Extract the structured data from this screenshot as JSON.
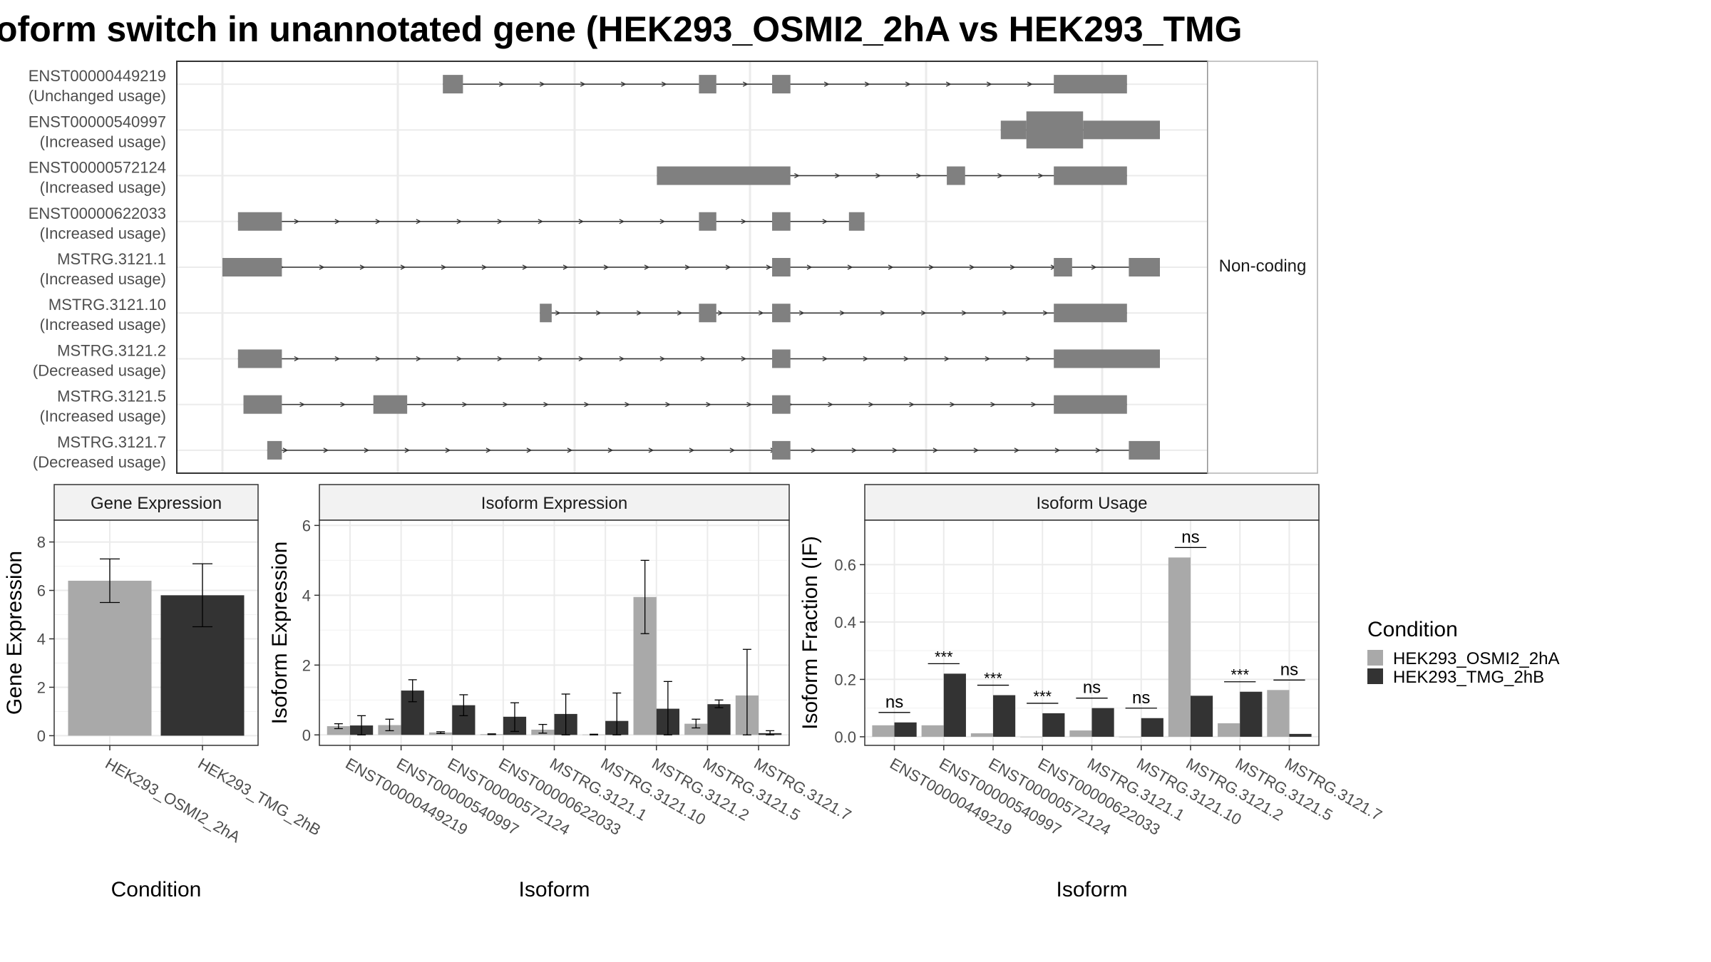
{
  "title": "oform switch in unannotated gene (HEK293_OSMI2_2hA vs HEK293_TMG",
  "colors": {
    "condA": "#a9a9a9",
    "condB": "#333333",
    "exon": "#808080",
    "grid": "#ebebeb",
    "frame": "#333333",
    "strip": "#f2f2f2"
  },
  "legend": {
    "title": "Condition",
    "items": [
      "HEK293_OSMI2_2hA",
      "HEK293_TMG_2hB"
    ]
  },
  "chart_data": [
    {
      "type": "isoform-structure",
      "facet_label": "Non-coding",
      "x_range": [
        0,
        1000
      ],
      "isoforms": [
        {
          "id": "ENST00000449219",
          "usage": "(Unchanged usage)",
          "exons": [
            [
              242,
              264
            ],
            [
              522,
              541
            ],
            [
              602,
              622
            ],
            [
              910,
              990
            ]
          ],
          "span": [
            242,
            990
          ]
        },
        {
          "id": "ENST00000540997",
          "usage": "(Increased usage)",
          "exons": [
            [
              852,
              880,
              "thin"
            ],
            [
              880,
              942,
              "thick"
            ],
            [
              942,
              1026,
              "thin"
            ]
          ],
          "span": [
            852,
            1026
          ]
        },
        {
          "id": "ENST00000572124",
          "usage": "(Increased usage)",
          "exons": [
            [
              476,
              622
            ],
            [
              793,
              813
            ],
            [
              910,
              990
            ]
          ],
          "span": [
            476,
            990
          ]
        },
        {
          "id": "ENST00000622033",
          "usage": "(Increased usage)",
          "exons": [
            [
              18,
              66
            ],
            [
              522,
              541
            ],
            [
              602,
              622
            ],
            [
              686,
              703
            ]
          ],
          "span": [
            18,
            703
          ]
        },
        {
          "id": "MSTRG.3121.1",
          "usage": "(Increased usage)",
          "exons": [
            [
              1,
              66
            ],
            [
              602,
              622
            ],
            [
              910,
              930
            ],
            [
              992,
              1026
            ]
          ],
          "span": [
            1,
            1026
          ]
        },
        {
          "id": "MSTRG.3121.10",
          "usage": "(Increased usage)",
          "exons": [
            [
              348,
              361
            ],
            [
              522,
              541
            ],
            [
              602,
              622
            ],
            [
              910,
              990
            ]
          ],
          "span": [
            348,
            990
          ]
        },
        {
          "id": "MSTRG.3121.2",
          "usage": "(Decreased usage)",
          "exons": [
            [
              18,
              66
            ],
            [
              602,
              622
            ],
            [
              910,
              1026
            ]
          ],
          "span": [
            18,
            1026
          ]
        },
        {
          "id": "MSTRG.3121.5",
          "usage": "(Increased usage)",
          "exons": [
            [
              24,
              66
            ],
            [
              166,
              203
            ],
            [
              602,
              622
            ],
            [
              910,
              990
            ]
          ],
          "span": [
            24,
            990
          ]
        },
        {
          "id": "MSTRG.3121.7",
          "usage": "(Decreased usage)",
          "exons": [
            [
              50,
              66
            ],
            [
              602,
              622
            ],
            [
              992,
              1026
            ]
          ],
          "span": [
            50,
            1026
          ]
        }
      ]
    },
    {
      "type": "bar",
      "title": "Gene Expression",
      "xlabel": "Condition",
      "ylabel": "Gene Expression",
      "ylim": [
        -0.4,
        8.9
      ],
      "yticks": [
        0,
        2,
        4,
        6,
        8
      ],
      "categories": [
        "HEK293_OSMI2_2hA",
        "HEK293_TMG_2hB"
      ],
      "values": [
        6.4,
        5.8
      ],
      "errors": [
        [
          5.5,
          7.3
        ],
        [
          4.5,
          7.1
        ]
      ]
    },
    {
      "type": "bar",
      "title": "Isoform Expression",
      "xlabel": "Isoform",
      "ylabel": "Isoform Expression",
      "ylim": [
        -0.3,
        6.15
      ],
      "yticks": [
        0,
        2,
        4,
        6
      ],
      "categories": [
        "ENST00000449219",
        "ENST00000540997",
        "ENST00000572124",
        "ENST00000622033",
        "MSTRG.3121.1",
        "MSTRG.3121.10",
        "MSTRG.3121.2",
        "MSTRG.3121.5",
        "MSTRG.3121.7"
      ],
      "series": [
        {
          "name": "HEK293_OSMI2_2hA",
          "values": [
            0.25,
            0.28,
            0.07,
            0.02,
            0.15,
            0.01,
            3.95,
            0.32,
            1.13
          ],
          "errors": [
            [
              0.18,
              0.32
            ],
            [
              0.12,
              0.45
            ],
            [
              0.04,
              0.09
            ],
            [
              0.01,
              0.03
            ],
            [
              0.05,
              0.3
            ],
            [
              0,
              0.02
            ],
            [
              2.9,
              5.0
            ],
            [
              0.2,
              0.45
            ],
            [
              0.0,
              2.45
            ]
          ]
        },
        {
          "name": "HEK293_TMG_2hB",
          "values": [
            0.27,
            1.27,
            0.85,
            0.52,
            0.6,
            0.4,
            0.75,
            0.88,
            0.05
          ],
          "errors": [
            [
              0.0,
              0.55
            ],
            [
              0.95,
              1.58
            ],
            [
              0.55,
              1.15
            ],
            [
              0.1,
              0.92
            ],
            [
              0.0,
              1.17
            ],
            [
              0.0,
              1.2
            ],
            [
              0.0,
              1.53
            ],
            [
              0.78,
              1.0
            ],
            [
              0.0,
              0.12
            ]
          ]
        }
      ]
    },
    {
      "type": "bar",
      "title": "Isoform Usage",
      "xlabel": "Isoform",
      "ylabel": "Isoform Fraction (IF)",
      "ylim": [
        -0.03,
        0.755
      ],
      "yticks": [
        0.0,
        0.2,
        0.4,
        0.6
      ],
      "ytick_labels": [
        "0.0",
        "0.2",
        "0.4",
        "0.6"
      ],
      "categories": [
        "ENST00000449219",
        "ENST00000540997",
        "ENST00000572124",
        "ENST00000622033",
        "MSTRG.3121.1",
        "MSTRG.3121.10",
        "MSTRG.3121.2",
        "MSTRG.3121.5",
        "MSTRG.3121.7"
      ],
      "series": [
        {
          "name": "HEK293_OSMI2_2hA",
          "values": [
            0.04,
            0.04,
            0.012,
            0.0,
            0.022,
            0.0,
            0.625,
            0.047,
            0.163
          ]
        },
        {
          "name": "HEK293_TMG_2hB",
          "values": [
            0.05,
            0.22,
            0.145,
            0.082,
            0.1,
            0.065,
            0.143,
            0.157,
            0.01
          ]
        }
      ],
      "significance": [
        "ns",
        "***",
        "***",
        "***",
        "ns",
        "ns",
        "ns",
        "***",
        "ns"
      ]
    }
  ]
}
